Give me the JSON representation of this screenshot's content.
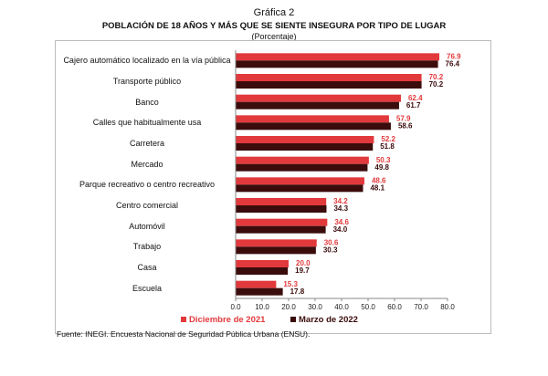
{
  "chart_data": {
    "type": "hbar",
    "label": "Gráfica 2",
    "title": "POBLACIÓN DE 18 AÑOS Y MÁS QUE SE SIENTE INSEGURA POR TIPO DE LUGAR",
    "subtitle": "(Porcentaje)",
    "source": "Fuente: INEGI. Encuesta Nacional de Seguridad Pública Urbana (ENSU).",
    "categories": [
      "Cajero automático localizado en la vía pública",
      "Transporte público",
      "Banco",
      "Calles que habitualmente usa",
      "Carretera",
      "Mercado",
      "Parque recreativo o centro recreativo",
      "Centro comercial",
      "Automóvil",
      "Trabajo",
      "Casa",
      "Escuela"
    ],
    "series": [
      {
        "name": "Diciembre de 2021",
        "color": "#e2393c",
        "values": [
          76.9,
          70.2,
          62.4,
          57.9,
          52.2,
          50.3,
          48.6,
          34.2,
          34.6,
          30.6,
          20.0,
          15.3
        ],
        "value_labels": [
          "76.9",
          "70.2",
          "62.4",
          "57.9",
          "52.2",
          "50.3",
          "48.6",
          "34.2",
          "34.6",
          "30.6",
          "20.0",
          "15.3"
        ]
      },
      {
        "name": "Marzo de 2022",
        "color": "#3b0c0c",
        "values": [
          76.4,
          70.2,
          61.7,
          58.6,
          51.8,
          49.8,
          48.1,
          34.3,
          34.0,
          30.3,
          19.7,
          17.8
        ],
        "value_labels": [
          "76.4",
          "70.2",
          "61.7",
          "58.6",
          "51.8",
          "49.8",
          "48.1",
          "34.3",
          "34.0",
          "30.3",
          "19.7",
          "17.8"
        ]
      }
    ],
    "xlim": [
      0,
      80
    ],
    "xticks": [
      {
        "value": 0,
        "label": "0.0"
      },
      {
        "value": 10,
        "label": "10.0"
      },
      {
        "value": 20,
        "label": "20.0"
      },
      {
        "value": 30,
        "label": "30.0"
      },
      {
        "value": 40,
        "label": "40.0"
      },
      {
        "value": 50,
        "label": "50.0"
      },
      {
        "value": 60,
        "label": "60.0"
      },
      {
        "value": 70,
        "label": "70.0"
      },
      {
        "value": 80,
        "label": "80.0"
      }
    ],
    "legend": "bottom"
  }
}
